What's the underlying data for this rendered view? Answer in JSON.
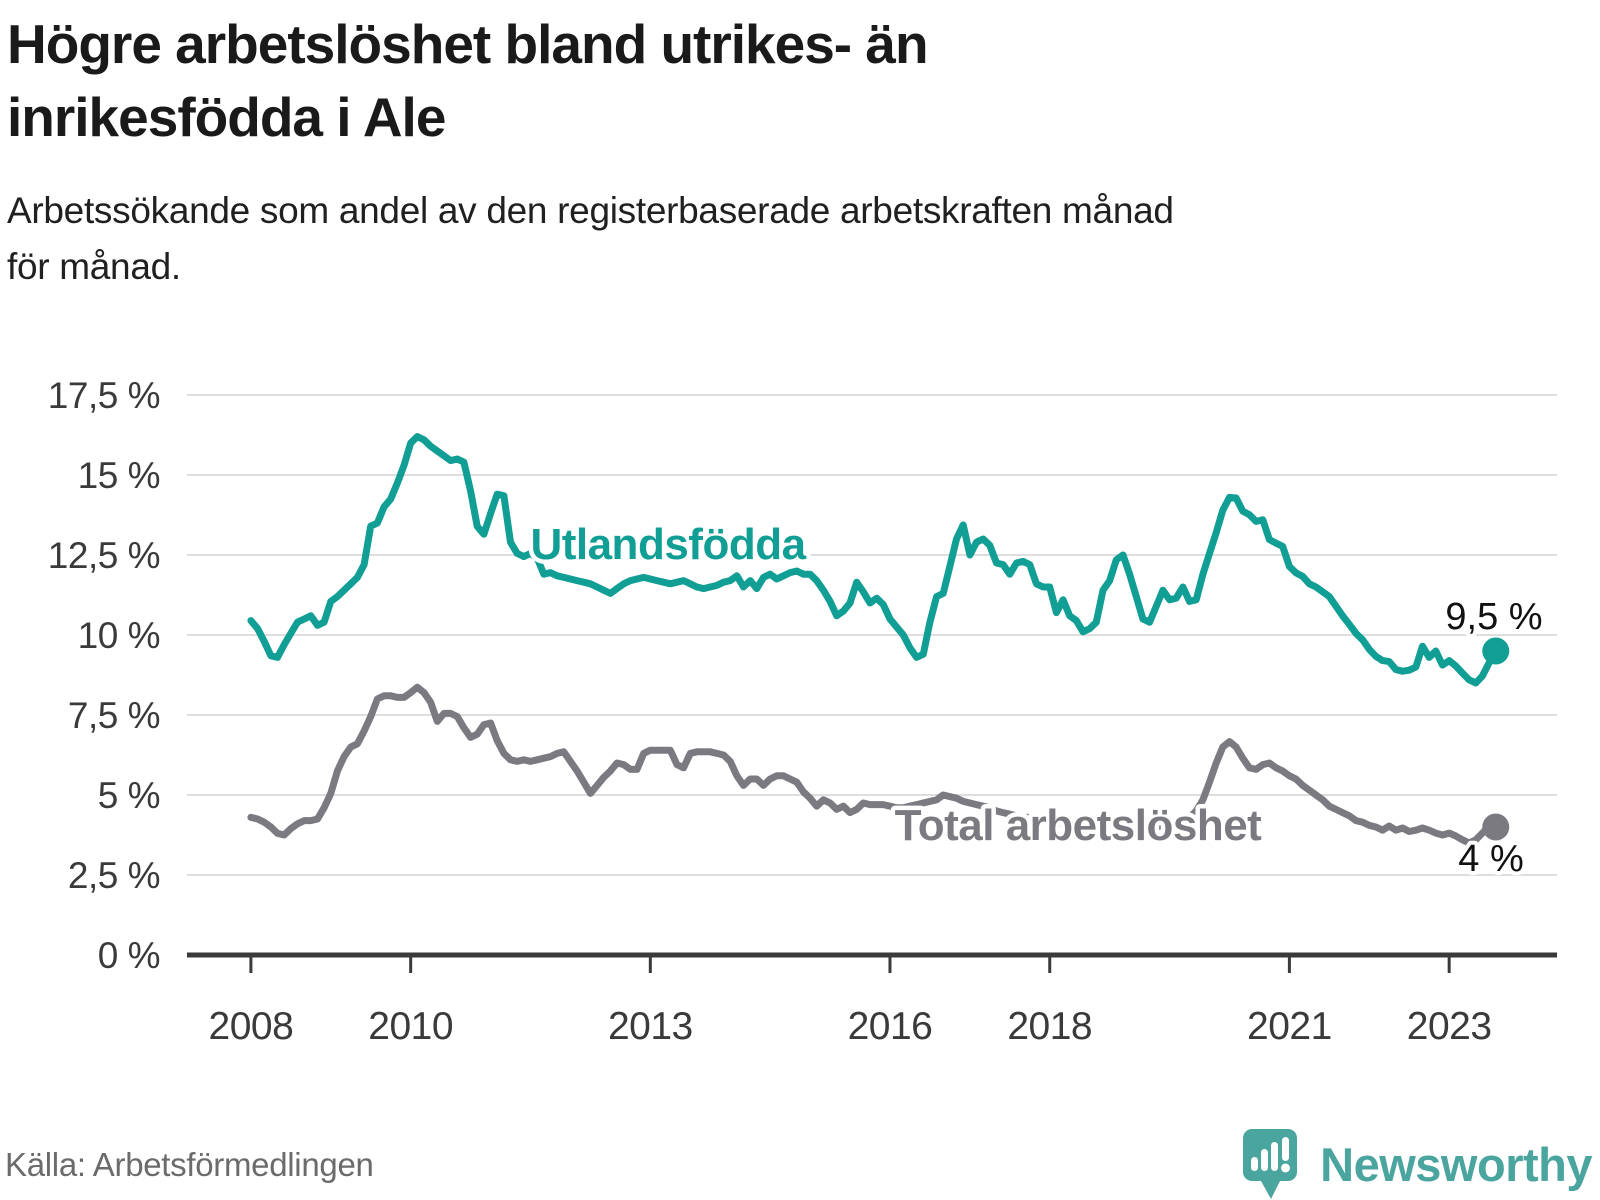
{
  "header": {
    "title_line1": "Högre arbetslöshet bland utrikes- än",
    "title_line2": "inrikesfödda i Ale",
    "subtitle_line1": "Arbetssökande som andel av den registerbaserade arbetskraften månad",
    "subtitle_line2": "för månad."
  },
  "footer": {
    "source": "Källa: Arbetsförmedlingen",
    "brand": "Newsworthy"
  },
  "colors": {
    "teal_line": "#119e95",
    "gray_line": "#7a7a80",
    "grid": "#dedede",
    "axis": "#3a3a3a",
    "tick_text": "#3a3a3a",
    "end_label_text": "#111111",
    "logo_teal": "#4ba59f"
  },
  "chart_data": {
    "type": "line",
    "title": "Högre arbetslöshet bland utrikes- än inrikesfödda i Ale",
    "subtitle": "Arbetssökande som andel av den registerbaserade arbetskraften månad för månad.",
    "unit": "%",
    "frequency": "monthly",
    "x_start": "2008-01",
    "x_end": "2023-08",
    "ylim": [
      0,
      17.5
    ],
    "grid": "horizontal",
    "ytick_values": [
      0,
      2.5,
      5,
      7.5,
      10,
      12.5,
      15,
      17.5
    ],
    "ytick_labels": [
      "0 %",
      "2,5 %",
      "5 %",
      "7,5 %",
      "10 %",
      "12,5 %",
      "15 %",
      "17,5 %"
    ],
    "xtick_years": [
      2008,
      2010,
      2013,
      2016,
      2018,
      2021,
      2023
    ],
    "xtick_labels": [
      "2008",
      "2010",
      "2013",
      "2016",
      "2018",
      "2021",
      "2023"
    ],
    "series": [
      {
        "name": "Utlandsfödda",
        "color": "#119e95",
        "end_label": "9,5 %",
        "end_value": 9.5,
        "values": [
          10.45,
          10.2,
          9.8,
          9.35,
          9.3,
          9.7,
          10.05,
          10.4,
          10.5,
          10.6,
          10.3,
          10.4,
          11.05,
          11.2,
          11.4,
          11.6,
          11.8,
          12.2,
          13.4,
          13.5,
          14.0,
          14.25,
          14.75,
          15.3,
          16.0,
          16.2,
          16.1,
          15.9,
          15.75,
          15.6,
          15.45,
          15.5,
          15.4,
          14.5,
          13.4,
          13.15,
          13.8,
          14.4,
          14.35,
          12.9,
          12.55,
          12.45,
          12.55,
          12.4,
          11.9,
          11.95,
          11.85,
          11.8,
          11.75,
          11.7,
          11.65,
          11.6,
          11.5,
          11.4,
          11.3,
          11.45,
          11.6,
          11.7,
          11.75,
          11.8,
          11.75,
          11.7,
          11.65,
          11.6,
          11.65,
          11.7,
          11.6,
          11.5,
          11.45,
          11.5,
          11.55,
          11.65,
          11.7,
          11.85,
          11.5,
          11.7,
          11.45,
          11.8,
          11.9,
          11.75,
          11.85,
          11.95,
          12.0,
          11.9,
          11.9,
          11.7,
          11.4,
          11.05,
          10.6,
          10.75,
          11.0,
          11.65,
          11.35,
          11.0,
          11.15,
          10.95,
          10.5,
          10.25,
          10.0,
          9.6,
          9.3,
          9.4,
          10.4,
          11.2,
          11.3,
          12.15,
          13.0,
          13.44,
          12.5,
          12.9,
          13.0,
          12.8,
          12.25,
          12.2,
          11.9,
          12.25,
          12.3,
          12.2,
          11.6,
          11.5,
          11.5,
          10.7,
          11.1,
          10.6,
          10.45,
          10.1,
          10.2,
          10.4,
          11.4,
          11.7,
          12.35,
          12.5,
          11.9,
          11.2,
          10.5,
          10.4,
          10.9,
          11.4,
          11.1,
          11.15,
          11.5,
          11.05,
          11.1,
          11.9,
          12.55,
          13.2,
          13.9,
          14.3,
          14.28,
          13.87,
          13.76,
          13.55,
          13.6,
          12.98,
          12.87,
          12.77,
          12.14,
          11.94,
          11.83,
          11.6,
          11.5,
          11.35,
          11.2,
          10.9,
          10.6,
          10.33,
          10.05,
          9.85,
          9.55,
          9.33,
          9.2,
          9.17,
          8.92,
          8.87,
          8.9,
          9.0,
          9.65,
          9.3,
          9.5,
          9.06,
          9.2,
          9.03,
          8.81,
          8.6,
          8.5,
          8.72,
          9.13,
          9.5
        ]
      },
      {
        "name": "Total arbetslöshet",
        "color": "#7a7a80",
        "end_label": "4 %",
        "end_value": 4.0,
        "values": [
          4.3,
          4.25,
          4.15,
          4.0,
          3.8,
          3.75,
          3.95,
          4.1,
          4.2,
          4.2,
          4.25,
          4.6,
          5.05,
          5.75,
          6.2,
          6.5,
          6.6,
          7.0,
          7.45,
          8.0,
          8.1,
          8.1,
          8.05,
          8.05,
          8.2,
          8.37,
          8.2,
          7.9,
          7.3,
          7.55,
          7.55,
          7.45,
          7.1,
          6.8,
          6.9,
          7.2,
          7.25,
          6.7,
          6.3,
          6.1,
          6.05,
          6.1,
          6.05,
          6.1,
          6.15,
          6.2,
          6.3,
          6.35,
          6.05,
          5.75,
          5.4,
          5.05,
          5.3,
          5.55,
          5.75,
          6.0,
          5.95,
          5.8,
          5.8,
          6.3,
          6.4,
          6.4,
          6.4,
          6.4,
          5.95,
          5.85,
          6.3,
          6.35,
          6.35,
          6.35,
          6.3,
          6.25,
          6.05,
          5.6,
          5.3,
          5.5,
          5.5,
          5.3,
          5.5,
          5.6,
          5.6,
          5.5,
          5.4,
          5.1,
          4.9,
          4.65,
          4.85,
          4.75,
          4.55,
          4.65,
          4.45,
          4.55,
          4.75,
          4.7,
          4.7,
          4.7,
          4.65,
          4.6,
          4.6,
          4.65,
          4.7,
          4.75,
          4.8,
          4.85,
          5.0,
          4.95,
          4.9,
          4.8,
          4.75,
          4.7,
          4.65,
          4.6,
          4.5,
          4.45,
          4.4,
          4.35,
          4.3,
          4.3,
          4.25,
          4.2,
          4.2,
          4.15,
          4.1,
          4.1,
          4.05,
          4.0,
          4.0,
          3.95,
          3.95,
          3.9,
          3.9,
          3.9,
          3.9,
          3.9,
          3.95,
          4.0,
          4.0,
          4.05,
          4.1,
          4.15,
          4.2,
          4.3,
          4.5,
          4.85,
          5.4,
          6.0,
          6.5,
          6.67,
          6.5,
          6.15,
          5.85,
          5.8,
          5.95,
          6.0,
          5.85,
          5.75,
          5.6,
          5.5,
          5.3,
          5.15,
          5.0,
          4.85,
          4.65,
          4.55,
          4.45,
          4.35,
          4.2,
          4.15,
          4.05,
          4.0,
          3.9,
          4.03,
          3.9,
          3.97,
          3.86,
          3.9,
          3.97,
          3.9,
          3.81,
          3.75,
          3.81,
          3.72,
          3.6,
          3.5,
          3.6,
          3.81,
          4.03,
          4.0
        ]
      }
    ]
  }
}
